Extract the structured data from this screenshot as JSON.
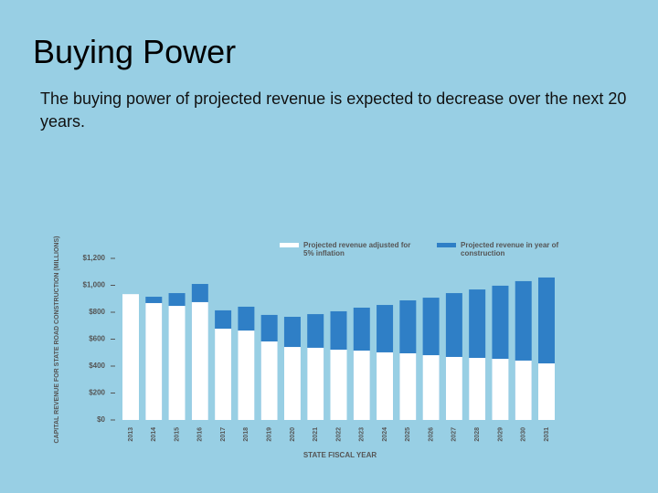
{
  "slide": {
    "title": "Buying Power",
    "text": "The buying power of projected revenue is expected to decrease over the next 20 years."
  },
  "chart_data": {
    "type": "bar",
    "ylabel": "CAPITAL REVENUE FOR STATE ROAD CONSTRUCTION (MILLIONS)",
    "xlabel": "STATE FISCAL YEAR",
    "categories": [
      "2013",
      "2014",
      "2015",
      "2016",
      "2017",
      "2018",
      "2019",
      "2020",
      "2021",
      "2022",
      "2023",
      "2024",
      "2025",
      "2026",
      "2027",
      "2028",
      "2029",
      "2030",
      "2031"
    ],
    "series": [
      {
        "name": "Projected revenue in year of construction",
        "color": "#2f7fc6",
        "values": [
          935,
          915,
          942,
          1010,
          814,
          841,
          780,
          766,
          786,
          807,
          834,
          854,
          888,
          908,
          942,
          969,
          997,
          1031,
          1058
        ]
      },
      {
        "name": "Projected revenue adjusted for 5% inflation",
        "color": "#ffffff",
        "values": [
          935,
          868,
          847,
          875,
          678,
          664,
          583,
          542,
          536,
          522,
          515,
          502,
          495,
          481,
          468,
          461,
          454,
          441,
          420
        ]
      }
    ],
    "overlap": true,
    "ylim": [
      0,
      1200
    ],
    "yticks": [
      {
        "value": 0,
        "label": "$0"
      },
      {
        "value": 200,
        "label": "$200"
      },
      {
        "value": 400,
        "label": "$400"
      },
      {
        "value": 600,
        "label": "$600"
      },
      {
        "value": 800,
        "label": "$800"
      },
      {
        "value": 1000,
        "label": "$1,000"
      },
      {
        "value": 1200,
        "label": "$1,200"
      }
    ]
  }
}
